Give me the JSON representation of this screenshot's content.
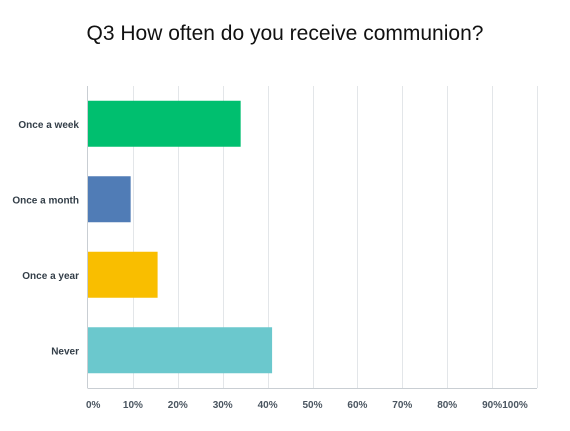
{
  "chart_data": {
    "type": "bar",
    "orientation": "horizontal",
    "title": "Q3 How often do you receive communion?",
    "categories": [
      "Once a week",
      "Once a month",
      "Once a year",
      "Never"
    ],
    "values": [
      34,
      9.5,
      15.5,
      41
    ],
    "colors": [
      "#00bf6f",
      "#507cb6",
      "#f9be00",
      "#6bc8cd"
    ],
    "xlim": [
      0,
      100
    ],
    "x_ticks": [
      "0%",
      "10%",
      "20%",
      "30%",
      "40%",
      "50%",
      "60%",
      "70%",
      "80%",
      "90%",
      "100%"
    ],
    "grid": true,
    "xlabel": "",
    "ylabel": ""
  }
}
